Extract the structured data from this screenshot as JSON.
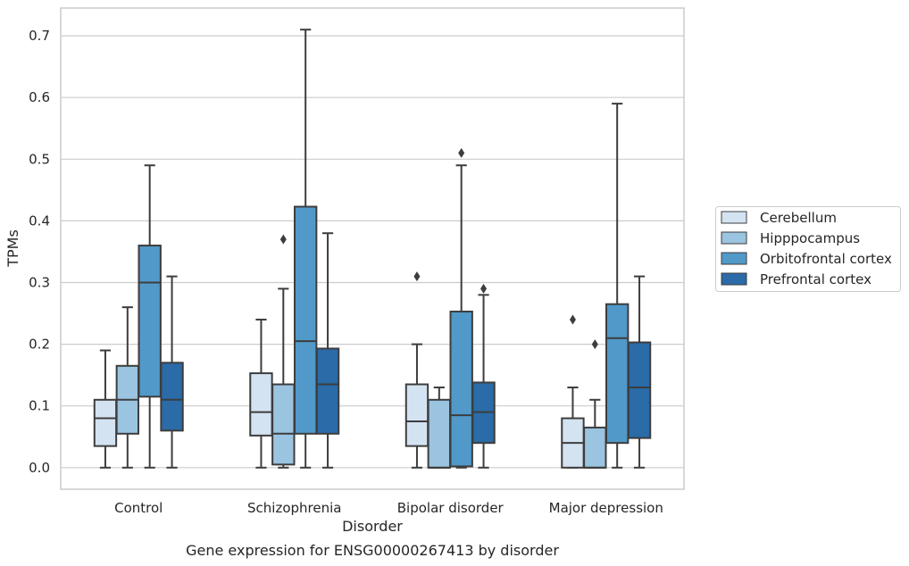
{
  "chart_data": {
    "type": "boxplot",
    "xlabel": "Disorder",
    "ylabel": "TPMs",
    "caption": "Gene expression for ENSG00000267413 by disorder",
    "ylim": [
      -0.035,
      0.745
    ],
    "yticks": [
      0.0,
      0.1,
      0.2,
      0.3,
      0.4,
      0.5,
      0.6,
      0.7
    ],
    "ytick_labels": [
      "0.0",
      "0.1",
      "0.2",
      "0.3",
      "0.4",
      "0.5",
      "0.6",
      "0.7"
    ],
    "grid": "horizontal",
    "legend_placement": "right",
    "categories": [
      "Control",
      "Schizophrenia",
      "Bipolar disorder",
      "Major depression"
    ],
    "series": [
      {
        "name": "Cerebellum",
        "color": "#d4e3f2",
        "boxes": [
          {
            "whislo": 0.0,
            "q1": 0.035,
            "med": 0.08,
            "q3": 0.11,
            "whishi": 0.19,
            "fliers": []
          },
          {
            "whislo": 0.0,
            "q1": 0.052,
            "med": 0.09,
            "q3": 0.153,
            "whishi": 0.24,
            "fliers": []
          },
          {
            "whislo": 0.0,
            "q1": 0.035,
            "med": 0.075,
            "q3": 0.135,
            "whishi": 0.2,
            "fliers": [
              0.31
            ]
          },
          {
            "whislo": 0.0,
            "q1": 0.0,
            "med": 0.04,
            "q3": 0.08,
            "whishi": 0.13,
            "fliers": [
              0.24
            ]
          }
        ]
      },
      {
        "name": "Hipppocampus",
        "color": "#9ac4e0",
        "boxes": [
          {
            "whislo": 0.0,
            "q1": 0.055,
            "med": 0.11,
            "q3": 0.165,
            "whishi": 0.26,
            "fliers": []
          },
          {
            "whislo": 0.0,
            "q1": 0.005,
            "med": 0.055,
            "q3": 0.135,
            "whishi": 0.29,
            "fliers": [
              0.37
            ]
          },
          {
            "whislo": 0.0,
            "q1": 0.0,
            "med": 0.0,
            "q3": 0.11,
            "whishi": 0.13,
            "fliers": []
          },
          {
            "whislo": 0.0,
            "q1": 0.0,
            "med": 0.0,
            "q3": 0.065,
            "whishi": 0.11,
            "fliers": [
              0.2
            ]
          }
        ]
      },
      {
        "name": "Orbitofrontal cortex",
        "color": "#5199c9",
        "boxes": [
          {
            "whislo": 0.0,
            "q1": 0.115,
            "med": 0.3,
            "q3": 0.36,
            "whishi": 0.49,
            "fliers": []
          },
          {
            "whislo": 0.0,
            "q1": 0.055,
            "med": 0.205,
            "q3": 0.423,
            "whishi": 0.71,
            "fliers": []
          },
          {
            "whislo": 0.0,
            "q1": 0.002,
            "med": 0.085,
            "q3": 0.253,
            "whishi": 0.49,
            "fliers": [
              0.51
            ]
          },
          {
            "whislo": 0.0,
            "q1": 0.04,
            "med": 0.21,
            "q3": 0.265,
            "whishi": 0.59,
            "fliers": []
          }
        ]
      },
      {
        "name": "Prefrontal cortex",
        "color": "#2a6ba8",
        "boxes": [
          {
            "whislo": 0.0,
            "q1": 0.06,
            "med": 0.11,
            "q3": 0.17,
            "whishi": 0.31,
            "fliers": []
          },
          {
            "whislo": 0.0,
            "q1": 0.055,
            "med": 0.135,
            "q3": 0.193,
            "whishi": 0.38,
            "fliers": []
          },
          {
            "whislo": 0.0,
            "q1": 0.04,
            "med": 0.09,
            "q3": 0.138,
            "whishi": 0.28,
            "fliers": [
              0.29
            ]
          },
          {
            "whislo": 0.0,
            "q1": 0.048,
            "med": 0.13,
            "q3": 0.203,
            "whishi": 0.31,
            "fliers": []
          }
        ]
      }
    ]
  }
}
